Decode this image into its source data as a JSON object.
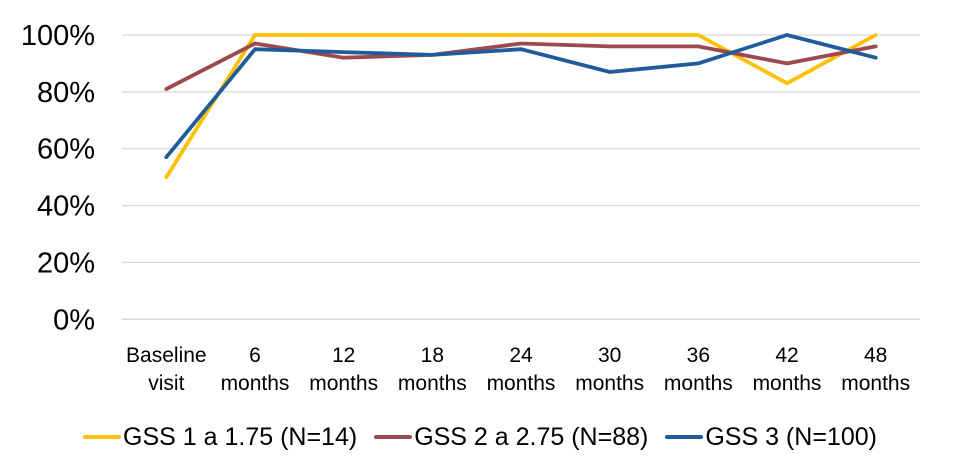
{
  "chart_data": {
    "type": "line",
    "categories": [
      "Baseline visit",
      "6 months",
      "12 months",
      "18 months",
      "24 months",
      "30 months",
      "36 months",
      "42 months",
      "48 months"
    ],
    "series": [
      {
        "name": "GSS 1 a 1.75 (N=14)",
        "color": "#FFC000",
        "values": [
          50,
          100,
          100,
          100,
          100,
          100,
          100,
          83,
          100
        ]
      },
      {
        "name": "GSS 2 a 2.75 (N=88)",
        "color": "#9C4A50",
        "values": [
          81,
          97,
          92,
          93,
          97,
          96,
          96,
          90,
          96
        ]
      },
      {
        "name": "GSS 3 (N=100)",
        "color": "#1F5C99",
        "values": [
          57,
          95,
          94,
          93,
          95,
          87,
          90,
          100,
          92
        ]
      }
    ],
    "title": "",
    "xlabel": "",
    "ylabel": "",
    "ylim": [
      0,
      100
    ],
    "ytick_step": 20,
    "ytick_suffix": "%",
    "grid": "horizontal",
    "gridline_color": "#D9D9D9",
    "text_color": "#000000",
    "legend_position": "bottom"
  }
}
